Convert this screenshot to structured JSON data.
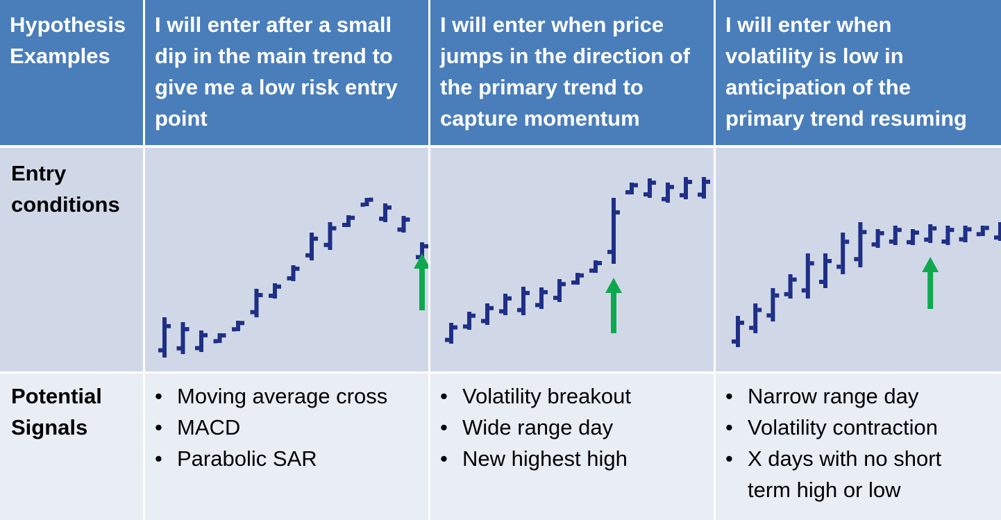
{
  "header": {
    "corner": [
      "Hypothesis",
      "Examples"
    ],
    "columns": [
      [
        "I will enter after a small",
        "dip in the main trend to",
        "give me a low risk entry",
        "point"
      ],
      [
        "I will enter when price",
        "jumps in the direction of",
        "the primary trend to",
        "capture momentum"
      ],
      [
        "I will enter when",
        "volatility is low in",
        "anticipation of the",
        "primary trend resuming"
      ]
    ]
  },
  "rows": {
    "entry_label": [
      "Entry",
      "conditions"
    ],
    "signals_label": [
      "Potential",
      "Signals"
    ]
  },
  "signals": [
    [
      [
        "Moving average cross"
      ],
      [
        "MACD"
      ],
      [
        "Parabolic SAR"
      ]
    ],
    [
      [
        "Volatility breakout"
      ],
      [
        "Wide range day"
      ],
      [
        "New highest high"
      ]
    ],
    [
      [
        "Narrow range day"
      ],
      [
        "Volatility contraction"
      ],
      [
        "X days with no short",
        "term high or low"
      ]
    ]
  ],
  "bullet_char": "•",
  "colors": {
    "header_bg": "#4a7ebb",
    "entry_row_bg": "#d0d8e8",
    "signal_row_bg": "#e9edf4",
    "bar_color": "#1f2f86",
    "arrow_color": "#10a84f"
  },
  "charts": [
    {
      "bars": [
        [
          10,
          68
        ],
        [
          15,
          61
        ],
        [
          18,
          49
        ],
        [
          31,
          45
        ],
        [
          48,
          63
        ],
        [
          68,
          109
        ],
        [
          95,
          117
        ],
        [
          120,
          143
        ],
        [
          150,
          190
        ],
        [
          165,
          205
        ],
        [
          198,
          215
        ],
        [
          228,
          240
        ],
        [
          205,
          232
        ],
        [
          190,
          214
        ],
        [
          150,
          176
        ]
      ],
      "arrow": {
        "bar_index": 14,
        "tip": 160,
        "tail": 78
      }
    },
    {
      "bars": [
        [
          30,
          60
        ],
        [
          50,
          76
        ],
        [
          57,
          88
        ],
        [
          71,
          102
        ],
        [
          71,
          112
        ],
        [
          80,
          111
        ],
        [
          90,
          123
        ],
        [
          115,
          132
        ],
        [
          132,
          150
        ],
        [
          145,
          240
        ],
        [
          245,
          262
        ],
        [
          240,
          268
        ],
        [
          233,
          262
        ],
        [
          238,
          270
        ],
        [
          239,
          270
        ],
        [
          238,
          264
        ],
        [
          262,
          290
        ]
      ],
      "arrow": {
        "bar_index": 9,
        "tip": 125,
        "tail": 45
      }
    },
    {
      "bars": [
        [
          25,
          70
        ],
        [
          45,
          88
        ],
        [
          62,
          110
        ],
        [
          95,
          130
        ],
        [
          95,
          160
        ],
        [
          110,
          160
        ],
        [
          130,
          190
        ],
        [
          140,
          205
        ],
        [
          168,
          195
        ],
        [
          172,
          200
        ],
        [
          172,
          195
        ],
        [
          175,
          202
        ],
        [
          172,
          200
        ],
        [
          176,
          200
        ],
        [
          185,
          200
        ],
        [
          178,
          205
        ],
        [
          200,
          232
        ],
        [
          230,
          275
        ]
      ],
      "arrow": {
        "bar_index": 11,
        "tip": 155,
        "tail": 80
      }
    }
  ]
}
